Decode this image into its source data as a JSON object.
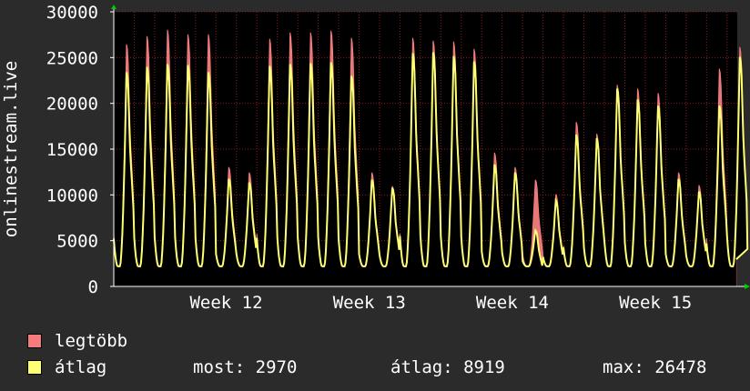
{
  "chart_data": {
    "type": "area",
    "ylabel": "onlinestream.live",
    "ylim": [
      0,
      30000
    ],
    "yticks": [
      0,
      5000,
      10000,
      15000,
      20000,
      25000,
      30000
    ],
    "ytick_labels": [
      "0",
      "5000",
      "10000",
      "15000",
      "20000",
      "25000",
      "30000"
    ],
    "xlim": [
      0,
      30.5
    ],
    "xticks": [
      {
        "x": 5.5,
        "label": "Week 12"
      },
      {
        "x": 12.5,
        "label": "Week 13"
      },
      {
        "x": 19.5,
        "label": "Week 14"
      },
      {
        "x": 26.5,
        "label": "Week 15"
      }
    ],
    "grid": true,
    "daily_avg_peaks": [
      23700,
      24300,
      24600,
      24500,
      23700,
      11900,
      11500,
      24400,
      24600,
      24700,
      24800,
      23300,
      11800,
      10900,
      25800,
      25900,
      25500,
      24900,
      13500,
      12600,
      6200,
      9500,
      16800,
      16400,
      21900,
      20700,
      20000,
      11900,
      10500,
      20000,
      25400
    ],
    "daily_max_peaks": [
      26800,
      27700,
      28400,
      27900,
      27900,
      13200,
      12600,
      27400,
      28100,
      28100,
      28300,
      27500,
      12600,
      11100,
      27500,
      27200,
      27100,
      26300,
      14800,
      13200,
      11800,
      10200,
      18200,
      16900,
      22300,
      21900,
      21400,
      12600,
      11200,
      24100,
      26500
    ],
    "night_min": 2200,
    "series": [
      {
        "name": "legtöbb",
        "color": "#f47c7c"
      },
      {
        "name": "átlag",
        "color": "#ffff73"
      }
    ]
  },
  "legend": {
    "max_label": "legtöbb",
    "avg_label": "átlag",
    "most": "most: 2970",
    "atlag": "átlag: 8919",
    "max": "max: 26478"
  },
  "colors": {
    "background": "#2b2b2b",
    "plot_background": "#000000",
    "grid": "#8a1c1c",
    "axis_arrow": "#00cc00"
  }
}
